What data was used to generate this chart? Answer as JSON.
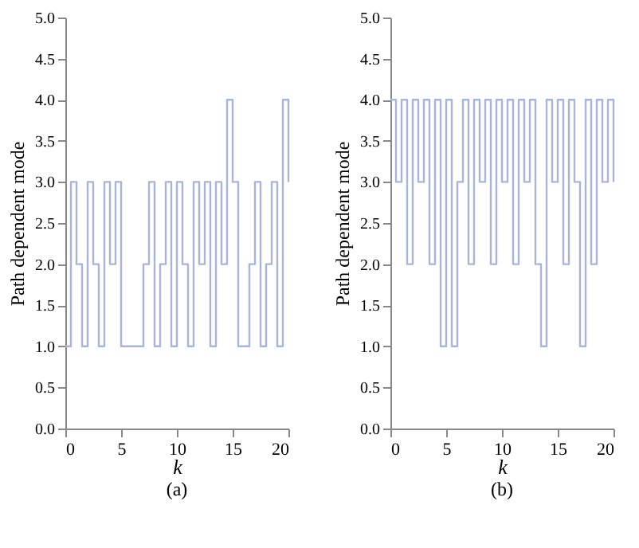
{
  "chart_data": [
    {
      "type": "step",
      "xlabel": "k",
      "ylabel": "Path dependent mode",
      "annotations": [
        "(a)"
      ],
      "x": [
        0,
        0.5,
        1,
        1.5,
        2,
        2.5,
        3,
        3.5,
        4,
        4.5,
        5,
        5.5,
        6,
        6.5,
        7,
        7.5,
        8,
        8.5,
        9,
        9.5,
        10,
        10.5,
        11,
        11.5,
        12,
        12.5,
        13,
        13.5,
        14,
        14.5,
        15,
        15.5,
        16,
        16.5,
        17,
        17.5,
        18,
        18.5,
        19,
        19.5,
        20
      ],
      "series": [
        {
          "color": "#aab4d8",
          "values": [
            1,
            3,
            2,
            1,
            3,
            2,
            1,
            3,
            2,
            3,
            1,
            1,
            1,
            1,
            2,
            3,
            1,
            2,
            3,
            1,
            3,
            2,
            1,
            3,
            2,
            3,
            1,
            3,
            2,
            4,
            3,
            1,
            1,
            2,
            3,
            1,
            2,
            3,
            1,
            4,
            3
          ]
        }
      ],
      "xlim": [
        0,
        20
      ],
      "xticks": [
        0,
        5,
        10,
        15,
        20
      ],
      "ylim": [
        0,
        5
      ],
      "yticks": [
        {
          "value": 0,
          "label": "0.0"
        },
        {
          "value": 0.5,
          "label": "0.5"
        },
        {
          "value": 1,
          "label": "1.0"
        },
        {
          "value": 1.5,
          "label": "1.5"
        },
        {
          "value": 2,
          "label": "2.0"
        },
        {
          "value": 2.5,
          "label": "2.5"
        },
        {
          "value": 3,
          "label": "3.0"
        },
        {
          "value": 3.5,
          "label": "3.5"
        },
        {
          "value": 4,
          "label": "4.0"
        },
        {
          "value": 4.5,
          "label": "4.5"
        },
        {
          "value": 5,
          "label": "5.0"
        }
      ],
      "grid": false
    },
    {
      "type": "step",
      "xlabel": "k",
      "ylabel": "Path dependent mode",
      "annotations": [
        "(b)"
      ],
      "x": [
        0,
        0.5,
        1,
        1.5,
        2,
        2.5,
        3,
        3.5,
        4,
        4.5,
        5,
        5.5,
        6,
        6.5,
        7,
        7.5,
        8,
        8.5,
        9,
        9.5,
        10,
        10.5,
        11,
        11.5,
        12,
        12.5,
        13,
        13.5,
        14,
        14.5,
        15,
        15.5,
        16,
        16.5,
        17,
        17.5,
        18,
        18.5,
        19,
        19.5,
        20
      ],
      "series": [
        {
          "color": "#aab4d8",
          "values": [
            4,
            3,
            4,
            2,
            4,
            3,
            4,
            2,
            4,
            1,
            4,
            1,
            3,
            4,
            2,
            4,
            3,
            4,
            2,
            4,
            3,
            4,
            2,
            4,
            3,
            4,
            2,
            1,
            4,
            3,
            4,
            2,
            4,
            3,
            1,
            4,
            2,
            4,
            3,
            4,
            3
          ]
        }
      ],
      "xlim": [
        0,
        20
      ],
      "xticks": [
        0,
        5,
        10,
        15,
        20
      ],
      "ylim": [
        0,
        5
      ],
      "yticks": [
        {
          "value": 0,
          "label": "0.0"
        },
        {
          "value": 0.5,
          "label": "0.5"
        },
        {
          "value": 1,
          "label": "1.0"
        },
        {
          "value": 1.5,
          "label": "1.5"
        },
        {
          "value": 2,
          "label": "2.0"
        },
        {
          "value": 2.5,
          "label": "2.5"
        },
        {
          "value": 3,
          "label": "3.0"
        },
        {
          "value": 3.5,
          "label": "3.5"
        },
        {
          "value": 4,
          "label": "4.0"
        },
        {
          "value": 4.5,
          "label": "4.5"
        },
        {
          "value": 5,
          "label": "5.0"
        }
      ],
      "grid": false
    }
  ]
}
